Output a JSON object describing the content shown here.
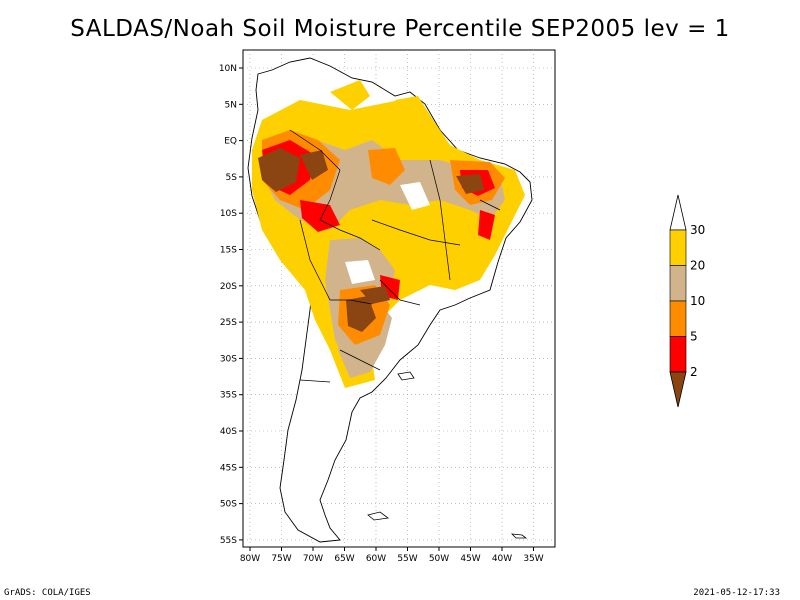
{
  "title": "SALDAS/Noah Soil Moisture Percentile SEP2005 lev = 1",
  "lat_labels": [
    "10N",
    "5N",
    "EQ",
    "5S",
    "10S",
    "15S",
    "20S",
    "25S",
    "30S",
    "35S",
    "40S",
    "45S",
    "50S",
    "55S"
  ],
  "lon_labels": [
    "80W",
    "75W",
    "70W",
    "65W",
    "60W",
    "55W",
    "50W",
    "45W",
    "40W",
    "35W"
  ],
  "colorbar": {
    "labels": [
      "30",
      "20",
      "10",
      "5",
      "2"
    ],
    "colors": [
      "#ffffff",
      "#ffd000",
      "#d2b48c",
      "#ff8c00",
      "#ff0000",
      "#8b4513"
    ]
  },
  "footer_left": "GrADS: COLA/IGES",
  "footer_right": "2021-05-12-17:33"
}
